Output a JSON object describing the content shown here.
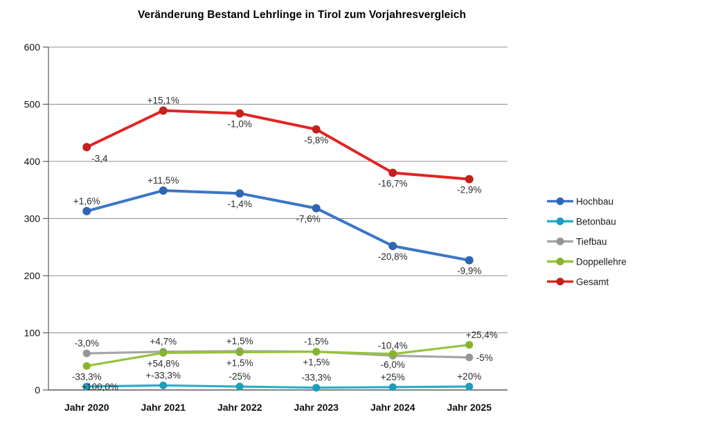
{
  "title": "Veränderung Bestand Lehrlinge in Tirol zum Vorjahresvergleich",
  "chart_data": {
    "type": "line",
    "title": "Veränderung Bestand Lehrlinge in Tirol zum Vorjahresvergleich",
    "categories": [
      "Jahr 2020",
      "Jahr 2021",
      "Jahr 2022",
      "Jahr 2023",
      "Jahr 2024",
      "Jahr 2025"
    ],
    "ylim": [
      0,
      600
    ],
    "yticks": [
      0,
      100,
      200,
      300,
      400,
      500,
      600
    ],
    "grid": true,
    "legend_position": "right",
    "grid_color": "#8C8C8C",
    "axis_color": "#595959",
    "series": [
      {
        "name": "Hochbau",
        "color": "#3B76C5",
        "marker_color": "#2F66B2",
        "values": [
          313,
          349,
          344,
          318,
          252,
          227
        ],
        "labels": [
          "+1,6%",
          "+11,5%",
          "-1,4%",
          "-7,6%",
          "-20,8%",
          "-9,9%"
        ],
        "label_pos": [
          "above",
          "above",
          "below",
          "below-left",
          "below",
          "below"
        ]
      },
      {
        "name": "Betonbau",
        "color": "#29AECB",
        "marker_color": "#1E9CBA",
        "values": [
          6,
          8,
          6,
          4,
          5,
          6
        ],
        "labels": [
          "+100,0%",
          "+-33,3%",
          "-25%",
          "-33,3%",
          "+25%",
          "+20%"
        ],
        "label_pos": [
          "right-on",
          "above",
          "above",
          "above",
          "above",
          "above"
        ]
      },
      {
        "name": "Tiefbau",
        "color": "#A6A6A6",
        "marker_color": "#969696",
        "values": [
          64,
          67,
          68,
          67,
          60,
          57
        ],
        "labels": [
          "-3,0%",
          "+4,7%",
          "+1,5%",
          "-1,5%",
          "-10,4%",
          "-5%"
        ],
        "label_pos": [
          "above",
          "above",
          "above",
          "above",
          "above",
          "right"
        ]
      },
      {
        "name": "Doppellehre",
        "color": "#97C23C",
        "marker_color": "#86B32C",
        "values": [
          42,
          65,
          66,
          67,
          63,
          79
        ],
        "labels": [
          "-33,3%",
          "+54,8%",
          "+1,5%",
          "+1,5%",
          "-6,0%",
          "+25,4%"
        ],
        "label_pos": [
          "below",
          "below",
          "below",
          "below",
          "below",
          "above-right"
        ]
      },
      {
        "name": "Gesamt",
        "color": "#E02522",
        "marker_color": "#C2211E",
        "values": [
          425,
          489,
          484,
          456,
          380,
          369
        ],
        "labels": [
          "-3,4",
          "+15,1%",
          "-1,0%",
          "-5,8%",
          "-16,7%",
          "-2,9%"
        ],
        "label_pos": [
          "below-right",
          "above",
          "below",
          "below",
          "below",
          "below"
        ]
      }
    ]
  }
}
